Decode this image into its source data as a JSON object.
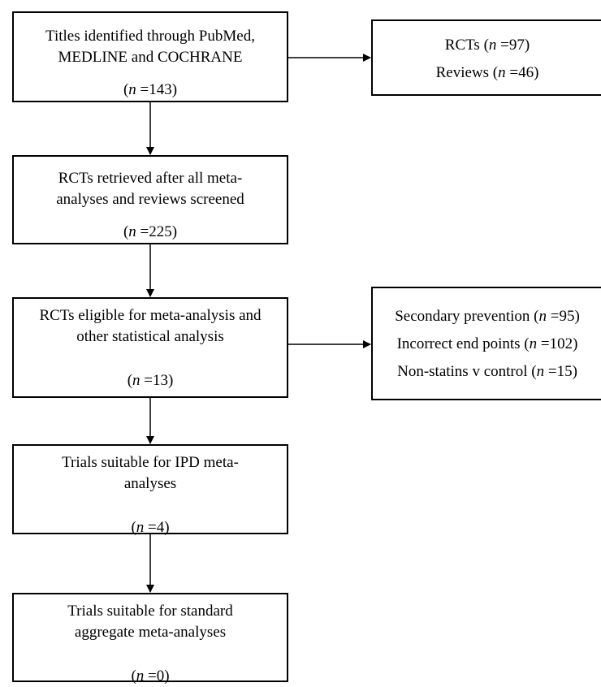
{
  "flow": {
    "titles": {
      "lines": [
        "Titles identified through PubMed,",
        "MEDLINE and COCHRANE"
      ],
      "n_prefix": "(",
      "n_symbol": "n",
      "n_value": " =143)"
    },
    "retrieved": {
      "lines": [
        "RCTs retrieved after all meta-",
        "analyses and reviews screened"
      ],
      "n_prefix": "(",
      "n_symbol": "n",
      "n_value": " =225)"
    },
    "eligible": {
      "lines": [
        "RCTs eligible for meta-analysis and",
        "other statistical analysis"
      ],
      "n_prefix": "(",
      "n_symbol": "n",
      "n_value": " =13)"
    },
    "ipd": {
      "lines": [
        "Trials suitable for IPD meta-",
        "analyses"
      ],
      "n_prefix": "(",
      "n_symbol": "n",
      "n_value": " =4)"
    },
    "aggregate": {
      "lines": [
        "Trials suitable for standard",
        "aggregate meta-analyses"
      ],
      "n_prefix": "(",
      "n_symbol": "n",
      "n_value": " =0)"
    }
  },
  "excluded_1": {
    "items": [
      {
        "label": "RCTs (",
        "n_symbol": "n",
        "value": " =97)"
      },
      {
        "label": "Reviews (",
        "n_symbol": "n",
        "value": " =46)"
      }
    ]
  },
  "excluded_2": {
    "items": [
      {
        "label": "Secondary prevention (",
        "n_symbol": "n",
        "value": " =95)"
      },
      {
        "label": "Incorrect end points (",
        "n_symbol": "n",
        "value": " =102)"
      },
      {
        "label": "Non-statins v control (",
        "n_symbol": "n",
        "value": " =15)"
      }
    ]
  }
}
